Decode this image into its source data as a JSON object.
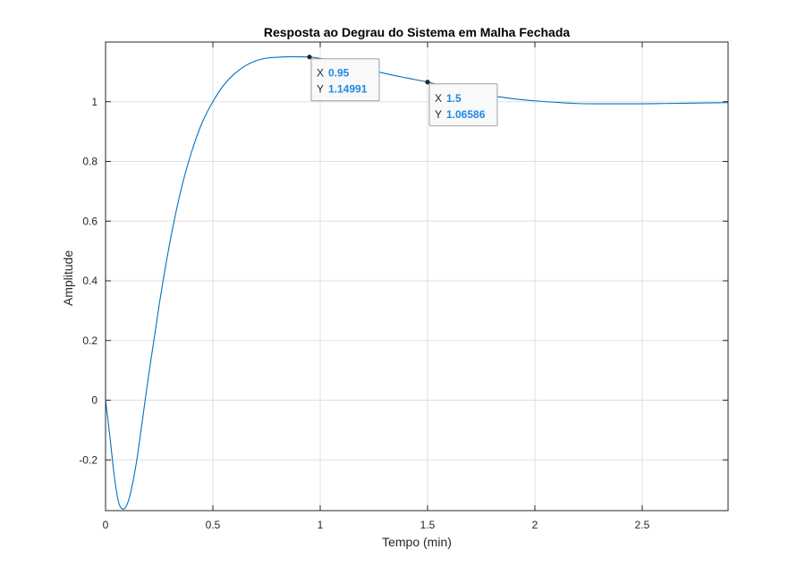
{
  "chart_data": {
    "type": "line",
    "title": "Resposta ao Degrau do Sistema em Malha Fechada",
    "xlabel": "Tempo (min)",
    "ylabel": "Amplitude",
    "xlim": [
      0,
      2.9
    ],
    "ylim": [
      -0.37,
      1.2
    ],
    "grid": true,
    "line_color": "#0072BD",
    "value_color": "#1e88e5",
    "xticks": [
      0,
      0.5,
      1,
      1.5,
      2,
      2.5
    ],
    "xtick_labels": [
      "0",
      "0.5",
      "1",
      "1.5",
      "2",
      "2.5"
    ],
    "yticks": [
      -0.2,
      0,
      0.2,
      0.4,
      0.6,
      0.8,
      1
    ],
    "ytick_labels": [
      "-0.2",
      "0",
      "0.2",
      "0.4",
      "0.6",
      "0.8",
      "1"
    ],
    "series": [
      {
        "x": [
          0,
          0.02,
          0.04,
          0.06,
          0.08,
          0.1,
          0.12,
          0.15,
          0.2,
          0.25,
          0.3,
          0.35,
          0.4,
          0.45,
          0.5,
          0.55,
          0.6,
          0.65,
          0.7,
          0.75,
          0.8,
          0.85,
          0.9,
          0.95,
          1.0,
          1.05,
          1.1,
          1.2,
          1.3,
          1.4,
          1.5,
          1.6,
          1.7,
          1.8,
          1.9,
          2.0,
          2.1,
          2.2,
          2.3,
          2.4,
          2.5,
          2.6,
          2.7,
          2.8,
          2.9
        ],
        "y": [
          0,
          -0.12,
          -0.25,
          -0.34,
          -0.365,
          -0.35,
          -0.3,
          -0.18,
          0.08,
          0.32,
          0.53,
          0.7,
          0.83,
          0.93,
          1.0,
          1.055,
          1.093,
          1.12,
          1.137,
          1.146,
          1.149,
          1.1505,
          1.1505,
          1.14991,
          1.145,
          1.138,
          1.13,
          1.113,
          1.095,
          1.08,
          1.06586,
          1.048,
          1.032,
          1.02,
          1.01,
          1.003,
          0.998,
          0.994,
          0.993,
          0.993,
          0.993,
          0.994,
          0.995,
          0.996,
          0.997
        ]
      }
    ],
    "datatips": [
      {
        "x_label": "X",
        "y_label": "Y",
        "x": 0.95,
        "y": 1.14991,
        "x_text": "0.95",
        "y_text": "1.14991"
      },
      {
        "x_label": "X",
        "y_label": "Y",
        "x": 1.5,
        "y": 1.06586,
        "x_text": "1.5",
        "y_text": "1.06586"
      }
    ]
  }
}
